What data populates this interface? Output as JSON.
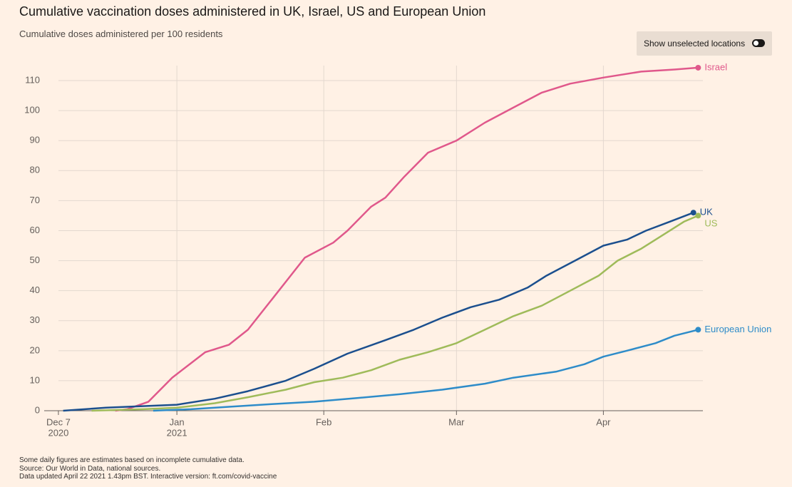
{
  "chart_data": {
    "type": "line",
    "title": "Cumulative vaccination doses administered in UK, Israel, US and European Union",
    "subtitle": "Cumulative doses administered per 100 residents",
    "toggle_label": "Show unselected locations",
    "notes": [
      "Some daily figures are estimates based on incomplete cumulative data.",
      "Source: Our World in Data, national sources.",
      "Data updated April 22 2021 1.43pm BST. Interactive version: ft.com/covid-vaccine"
    ],
    "xlim": [
      -3,
      136
    ],
    "xticks": [
      {
        "value": 0,
        "label": "Dec 7",
        "sublabel": "2020"
      },
      {
        "value": 25,
        "label": "Jan",
        "sublabel": "2021"
      },
      {
        "value": 56,
        "label": "Feb"
      },
      {
        "value": 84,
        "label": "Mar"
      },
      {
        "value": 115,
        "label": "Apr"
      }
    ],
    "ylim": [
      0,
      115
    ],
    "yticks": [
      0,
      10,
      20,
      30,
      40,
      50,
      60,
      70,
      80,
      90,
      100,
      110
    ],
    "grid": true,
    "series": [
      {
        "name": "Israel",
        "color": "#e0588b",
        "x": [
          12,
          14.5,
          19,
          24,
          31,
          36,
          40,
          45,
          49,
          52,
          58,
          61,
          66,
          69,
          73,
          78,
          84,
          90,
          96,
          102,
          108,
          115,
          123,
          130,
          135
        ],
        "values": [
          0,
          0.5,
          3,
          11,
          19.5,
          22,
          27,
          37,
          45,
          51,
          56,
          60,
          68,
          71,
          78,
          86,
          90,
          96,
          101,
          106,
          109,
          111,
          113,
          113.7,
          114.3
        ]
      },
      {
        "name": "UK",
        "color": "#1b4f8e",
        "x": [
          1,
          10,
          25,
          33,
          40,
          48,
          54,
          61,
          69,
          75,
          81,
          87,
          93,
          99,
          103,
          109,
          115,
          120,
          124,
          129,
          134
        ],
        "values": [
          0,
          1,
          2,
          4,
          6.5,
          10,
          14,
          19,
          23.5,
          27,
          31,
          34.5,
          37,
          41,
          45,
          50,
          55,
          57,
          60,
          63,
          66
        ]
      },
      {
        "name": "US",
        "color": "#9fbb5a",
        "x": [
          7,
          18,
          25,
          33,
          40,
          48,
          54,
          60,
          66,
          72,
          78,
          84,
          90,
          96,
          102,
          108,
          114,
          118,
          123,
          127,
          132,
          135
        ],
        "values": [
          0,
          0.5,
          1,
          2.5,
          4.5,
          7,
          9.5,
          11,
          13.5,
          17,
          19.5,
          22.5,
          27,
          31.5,
          35,
          40,
          45,
          50,
          54,
          58,
          63,
          65
        ]
      },
      {
        "name": "European Union",
        "color": "#2e8cc9",
        "x": [
          20,
          28,
          36,
          45,
          54,
          63,
          72,
          81,
          90,
          96,
          105,
          111,
          115,
          120,
          126,
          130,
          135
        ],
        "values": [
          0,
          0.5,
          1.3,
          2.2,
          3,
          4.2,
          5.5,
          7,
          9,
          11,
          13,
          15.5,
          18,
          20,
          22.5,
          25,
          27
        ]
      }
    ]
  }
}
